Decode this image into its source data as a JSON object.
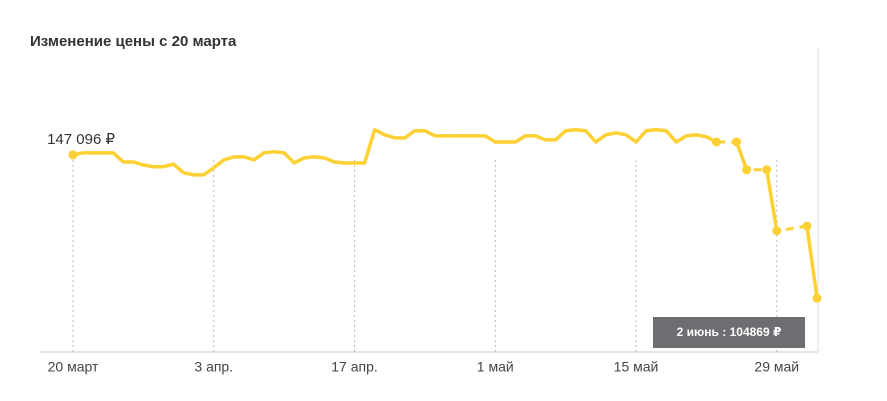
{
  "chart_data": {
    "type": "line",
    "title": "Изменение цены с 20 марта",
    "categories": [
      "20 март",
      null,
      null,
      null,
      null,
      null,
      null,
      null,
      null,
      null,
      null,
      null,
      null,
      null,
      "3 апр.",
      null,
      null,
      null,
      null,
      null,
      null,
      null,
      null,
      null,
      null,
      null,
      null,
      null,
      "17 апр.",
      null,
      null,
      null,
      null,
      null,
      null,
      null,
      null,
      null,
      null,
      null,
      null,
      null,
      "1 май",
      null,
      null,
      null,
      null,
      null,
      null,
      null,
      null,
      null,
      null,
      null,
      null,
      null,
      "15 май",
      null,
      null,
      null,
      null,
      null,
      null,
      null,
      null,
      null,
      null,
      null,
      null,
      null,
      "29 май",
      null,
      null,
      null,
      null
    ],
    "series": [
      {
        "name": null,
        "color": "#fdd033",
        "values": [
          147096,
          147700,
          147700,
          147700,
          147700,
          145000,
          145000,
          144100,
          143600,
          143600,
          144400,
          141800,
          141200,
          141200,
          143300,
          145600,
          146500,
          146500,
          145600,
          147700,
          148000,
          147700,
          144700,
          146200,
          146500,
          146200,
          145000,
          144700,
          144700,
          144700,
          154500,
          153000,
          152100,
          152100,
          154200,
          154200,
          152700,
          152700,
          152700,
          152700,
          152700,
          152700,
          150900,
          150900,
          150900,
          152700,
          152700,
          151500,
          151500,
          154200,
          154500,
          154200,
          150900,
          153000,
          153600,
          153000,
          150900,
          154200,
          154500,
          154200,
          150900,
          152700,
          153000,
          152400,
          150900,
          null,
          150900,
          142700,
          null,
          142700,
          124700,
          null,
          null,
          126100,
          104869
        ],
        "value_labels": [
          "147 096 ₽",
          null,
          null,
          null,
          null,
          null,
          null,
          null,
          null,
          null,
          null,
          null,
          null,
          null,
          null,
          null,
          null,
          null,
          null,
          null,
          null,
          null,
          null,
          null,
          null,
          null,
          null,
          null,
          null,
          null,
          null,
          null,
          null,
          null,
          null,
          null,
          null,
          null,
          null,
          null,
          null,
          null,
          null,
          null,
          null,
          null,
          null,
          null,
          null,
          null,
          null,
          null,
          null,
          null,
          null,
          null,
          null,
          null,
          null,
          null,
          null,
          null,
          null,
          null,
          null,
          null,
          null,
          null,
          null,
          null,
          null,
          null,
          null,
          null,
          null
        ]
      }
    ],
    "ylim": [
      89000,
      178000
    ],
    "tooltip": "2 июнь : 104869 ₽"
  }
}
